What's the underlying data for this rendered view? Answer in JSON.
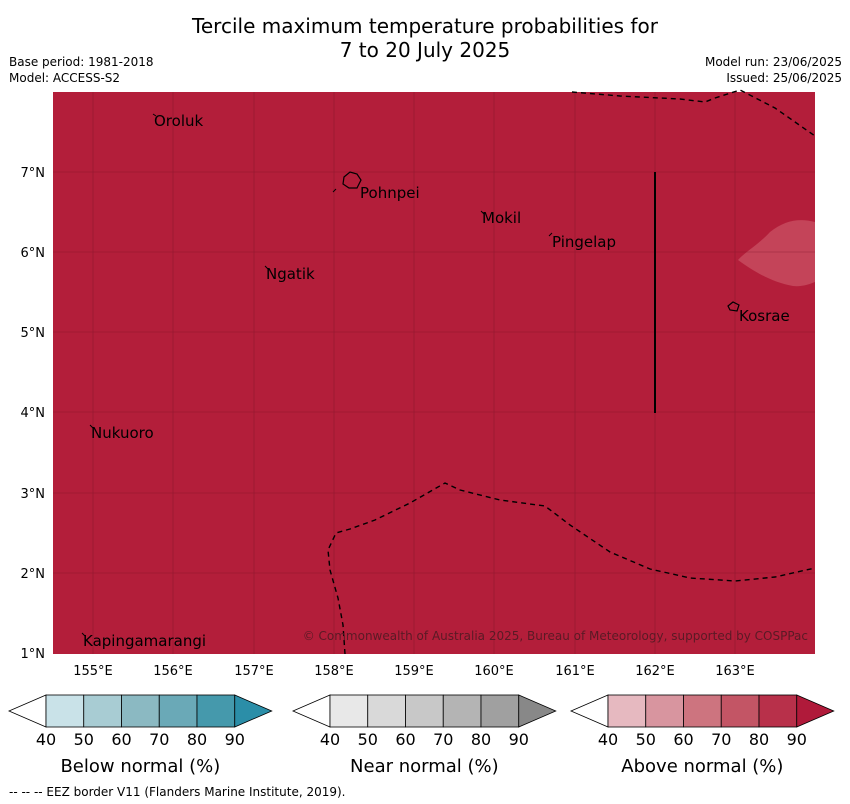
{
  "title_line1": "Tercile maximum temperature probabilities for",
  "title_line2": "7 to 20 July 2025",
  "meta_left": [
    "Base period: 1981-2018",
    "Model: ACCESS-S2"
  ],
  "meta_right": [
    "Model run: 23/06/2025",
    "Issued: 25/06/2025"
  ],
  "lon_ticks": [
    "155°E",
    "156°E",
    "157°E",
    "158°E",
    "159°E",
    "160°E",
    "161°E",
    "162°E",
    "163°E"
  ],
  "lat_ticks": [
    "7°N",
    "6°N",
    "5°N",
    "4°N",
    "3°N",
    "2°N",
    "1°N"
  ],
  "places": [
    {
      "name": "Oroluk"
    },
    {
      "name": "Pohnpei"
    },
    {
      "name": "Mokil"
    },
    {
      "name": "Pingelap"
    },
    {
      "name": "Ngatik"
    },
    {
      "name": "Kosrae"
    },
    {
      "name": "Nukuoro"
    },
    {
      "name": "Kapingamarangi"
    }
  ],
  "copyright": "© Commonwealth of Australia 2025, Bureau of Meteorology, supported by COSPPac",
  "colors": {
    "above_90": "#b31e3a",
    "above_70": "#c44459"
  },
  "colorbars": [
    {
      "title": "Below normal (%)",
      "ticks": [
        "40",
        "50",
        "60",
        "70",
        "80",
        "90"
      ],
      "colors": [
        "#ffffff",
        "#c9e2e8",
        "#a8ccd3",
        "#8bb9c2",
        "#6aa9b7",
        "#4599ac",
        "#2b8ea8"
      ]
    },
    {
      "title": "Near normal (%)",
      "ticks": [
        "40",
        "50",
        "60",
        "70",
        "80",
        "90"
      ],
      "colors": [
        "#ffffff",
        "#e8e8e8",
        "#d9d9d9",
        "#c8c8c8",
        "#b4b4b4",
        "#a0a0a0",
        "#888888"
      ]
    },
    {
      "title": "Above normal (%)",
      "ticks": [
        "40",
        "50",
        "60",
        "70",
        "80",
        "90"
      ],
      "colors": [
        "#ffffff",
        "#e6b9c0",
        "#d8959f",
        "#cd747f",
        "#c35565",
        "#b8304a",
        "#b01a3a"
      ]
    }
  ],
  "footer": "--  --  -- EEZ border V11 (Flanders Marine Institute, 2019)."
}
